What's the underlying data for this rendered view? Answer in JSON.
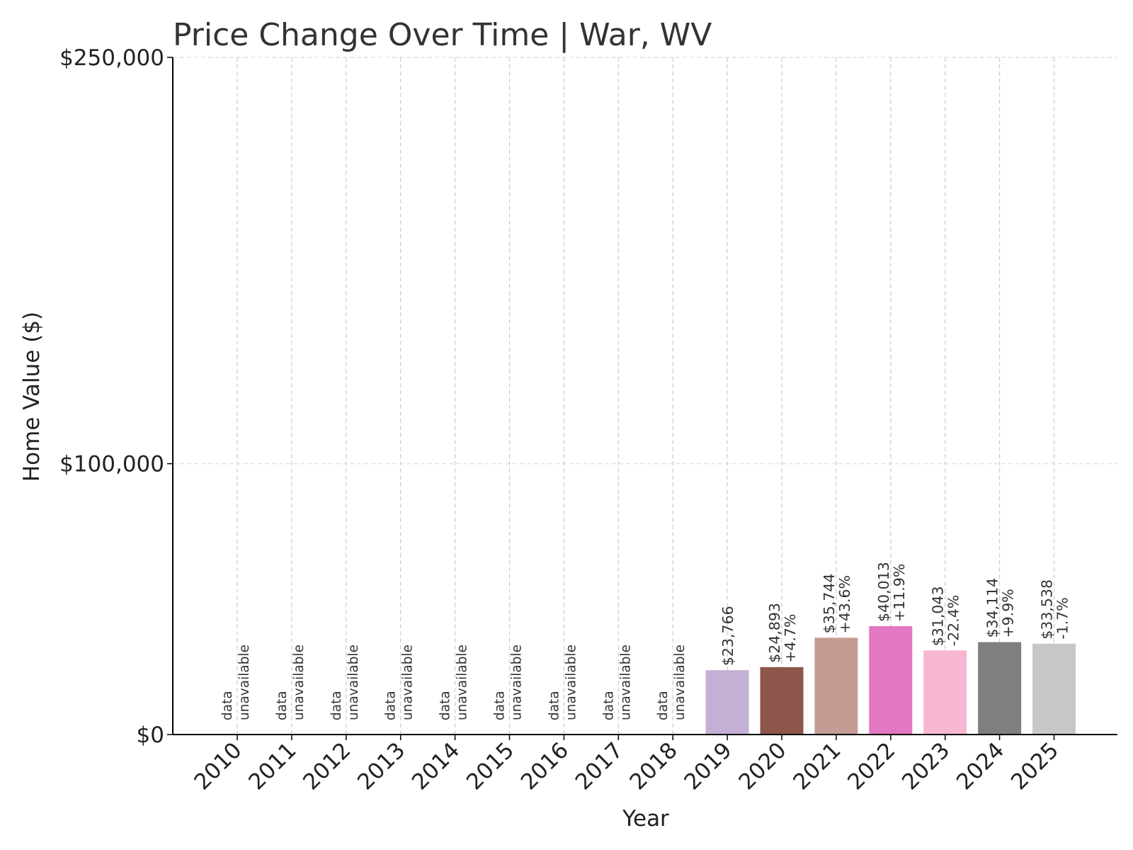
{
  "chart_data": {
    "type": "bar",
    "title": "Price Change Over Time | War, WV",
    "xlabel": "Year",
    "ylabel": "Home Value ($)",
    "ylim": [
      0,
      250000
    ],
    "yticks": [
      {
        "value": 0,
        "label": "$0"
      },
      {
        "value": 100000,
        "label": "$100,000"
      },
      {
        "value": 250000,
        "label": "$250,000"
      }
    ],
    "categories": [
      "2010",
      "2011",
      "2012",
      "2013",
      "2014",
      "2015",
      "2016",
      "2017",
      "2018",
      "2019",
      "2020",
      "2021",
      "2022",
      "2023",
      "2024",
      "2025"
    ],
    "values": [
      null,
      null,
      null,
      null,
      null,
      null,
      null,
      null,
      null,
      23766,
      24893,
      35744,
      40013,
      31043,
      34114,
      33538
    ],
    "value_labels": [
      "",
      "",
      "",
      "",
      "",
      "",
      "",
      "",
      "",
      "$23,766",
      "$24,893",
      "$35,744",
      "$40,013",
      "$31,043",
      "$34,114",
      "$33,538"
    ],
    "change_labels": [
      "",
      "",
      "",
      "",
      "",
      "",
      "",
      "",
      "",
      "",
      "+4.7%",
      "+43.6%",
      "+11.9%",
      "-22.4%",
      "+9.9%",
      "-1.7%"
    ],
    "missing_label": [
      "data",
      "unavailable"
    ],
    "colors": [
      "#c5b0d5",
      "#c5b0d5",
      "#c5b0d5",
      "#c5b0d5",
      "#c5b0d5",
      "#c5b0d5",
      "#c5b0d5",
      "#c5b0d5",
      "#c5b0d5",
      "#c5b0d5",
      "#8c564b",
      "#c49c94",
      "#e377c2",
      "#f7b6d2",
      "#7f7f7f",
      "#c7c7c7"
    ],
    "grid": true,
    "grid_style": "dashed",
    "legend": "none"
  }
}
